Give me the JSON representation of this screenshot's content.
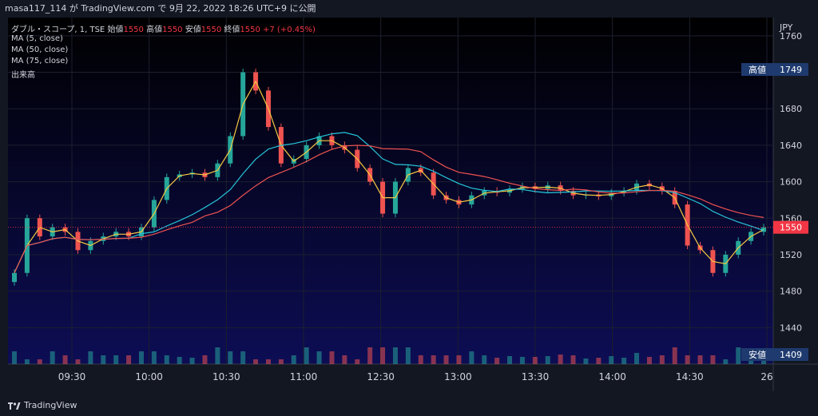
{
  "header": {
    "caption": "masa117_114 が TradingView.com で 9月 22, 2022 18:26 UTC+9 に公開"
  },
  "legend": {
    "symbol": "ダブル・スコープ, 1, TSE",
    "open_label": "始値",
    "open": "1550",
    "high_label": "高値",
    "high": "1550",
    "low_label": "安値",
    "low": "1550",
    "close_label": "終値",
    "close": "1550",
    "change": "+7 (+0.45%)",
    "ma5": "MA (5, close)",
    "ma50": "MA (50, close)",
    "ma75": "MA (75, close)",
    "volume": "出来高"
  },
  "price_axis": {
    "currency": "JPY",
    "high_label": "高値",
    "high_value": "1749",
    "low_label": "安値",
    "low_value": "1409",
    "last_value": "1550"
  },
  "footer": {
    "brand": "TradingView"
  },
  "colors": {
    "background_top": "#000000",
    "background_bottom": "#0d0d55",
    "up": "#26a69a",
    "down": "#ef5350",
    "ma5": "#f5c842",
    "ma50": "#26c6da",
    "ma75": "#ef5350",
    "last_price": "#f23645",
    "marker_bg": "#1e3a6e"
  },
  "chart_data": {
    "type": "candlestick",
    "x_ticks": [
      "09:30",
      "10:00",
      "10:30",
      "11:00",
      "12:30",
      "13:00",
      "13:30",
      "14:00",
      "14:30",
      "26"
    ],
    "y_ticks": [
      1760,
      1720,
      1680,
      1640,
      1600,
      1560,
      1520,
      1480,
      1440
    ],
    "ylim": [
      1400,
      1780
    ],
    "close_series": [
      {
        "t": "09:00",
        "v": 1500
      },
      {
        "t": "09:05",
        "v": 1560
      },
      {
        "t": "09:10",
        "v": 1540
      },
      {
        "t": "09:15",
        "v": 1550
      },
      {
        "t": "09:20",
        "v": 1545
      },
      {
        "t": "09:25",
        "v": 1525
      },
      {
        "t": "09:30",
        "v": 1535
      },
      {
        "t": "09:35",
        "v": 1540
      },
      {
        "t": "09:40",
        "v": 1545
      },
      {
        "t": "09:45",
        "v": 1540
      },
      {
        "t": "09:50",
        "v": 1550
      },
      {
        "t": "09:55",
        "v": 1580
      },
      {
        "t": "10:00",
        "v": 1605
      },
      {
        "t": "10:05",
        "v": 1608
      },
      {
        "t": "10:10",
        "v": 1610
      },
      {
        "t": "10:15",
        "v": 1605
      },
      {
        "t": "10:20",
        "v": 1620
      },
      {
        "t": "10:25",
        "v": 1650
      },
      {
        "t": "10:30",
        "v": 1720
      },
      {
        "t": "10:35",
        "v": 1700
      },
      {
        "t": "10:40",
        "v": 1660
      },
      {
        "t": "10:45",
        "v": 1620
      },
      {
        "t": "10:50",
        "v": 1625
      },
      {
        "t": "10:55",
        "v": 1640
      },
      {
        "t": "11:00",
        "v": 1650
      },
      {
        "t": "11:05",
        "v": 1640
      },
      {
        "t": "11:10",
        "v": 1635
      },
      {
        "t": "11:15",
        "v": 1615
      },
      {
        "t": "11:20",
        "v": 1600
      },
      {
        "t": "11:25",
        "v": 1565
      },
      {
        "t": "12:30",
        "v": 1600
      },
      {
        "t": "12:35",
        "v": 1615
      },
      {
        "t": "12:40",
        "v": 1610
      },
      {
        "t": "12:45",
        "v": 1585
      },
      {
        "t": "12:50",
        "v": 1580
      },
      {
        "t": "12:55",
        "v": 1575
      },
      {
        "t": "13:00",
        "v": 1585
      },
      {
        "t": "13:05",
        "v": 1590
      },
      {
        "t": "13:10",
        "v": 1588
      },
      {
        "t": "13:15",
        "v": 1592
      },
      {
        "t": "13:20",
        "v": 1595
      },
      {
        "t": "13:25",
        "v": 1592
      },
      {
        "t": "13:30",
        "v": 1596
      },
      {
        "t": "13:35",
        "v": 1590
      },
      {
        "t": "13:40",
        "v": 1585
      },
      {
        "t": "13:45",
        "v": 1586
      },
      {
        "t": "13:50",
        "v": 1584
      },
      {
        "t": "13:55",
        "v": 1588
      },
      {
        "t": "14:00",
        "v": 1590
      },
      {
        "t": "14:05",
        "v": 1598
      },
      {
        "t": "14:10",
        "v": 1595
      },
      {
        "t": "14:15",
        "v": 1590
      },
      {
        "t": "14:20",
        "v": 1575
      },
      {
        "t": "14:25",
        "v": 1530
      },
      {
        "t": "14:30",
        "v": 1525
      },
      {
        "t": "14:35",
        "v": 1500
      },
      {
        "t": "14:40",
        "v": 1520
      },
      {
        "t": "14:45",
        "v": 1535
      },
      {
        "t": "14:50",
        "v": 1545
      },
      {
        "t": "14:55",
        "v": 1550
      }
    ]
  }
}
